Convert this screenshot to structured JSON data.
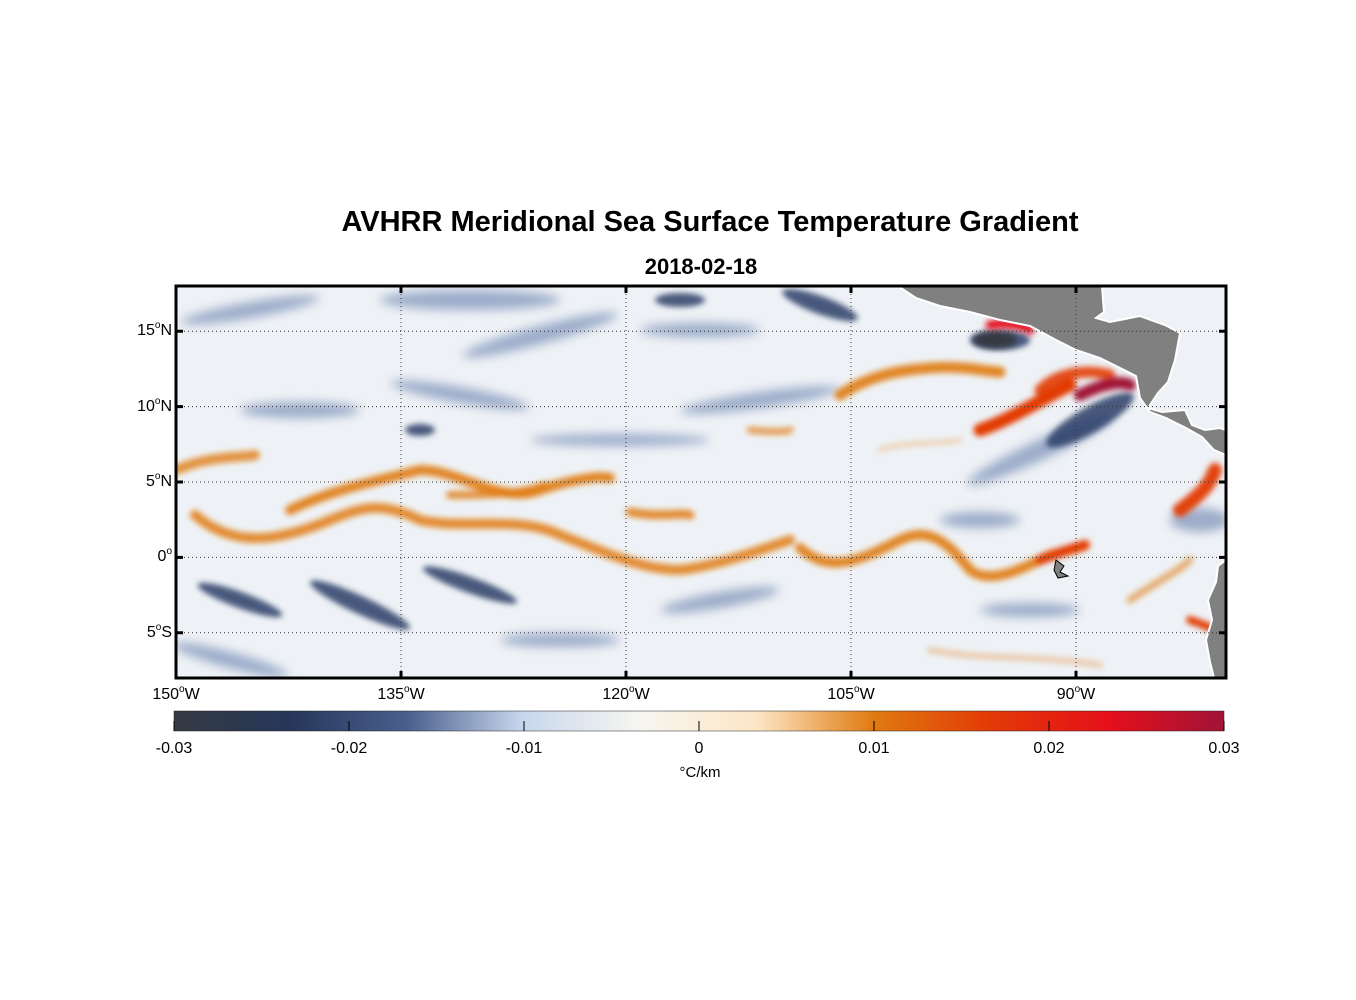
{
  "title": "AVHRR Meridional Sea Surface Temperature Gradient",
  "subtitle": "2018-02-18",
  "map": {
    "lon_range": [
      -150,
      -80
    ],
    "lat_range": [
      -8,
      18
    ],
    "lat_ticks": [
      {
        "value": 15,
        "num": "15",
        "hemi": "N"
      },
      {
        "value": 10,
        "num": "10",
        "hemi": "N"
      },
      {
        "value": 5,
        "num": "5",
        "hemi": "N"
      },
      {
        "value": 0,
        "num": "0",
        "hemi": ""
      },
      {
        "value": -5,
        "num": "5",
        "hemi": "S"
      }
    ],
    "lon_ticks": [
      {
        "value": -150,
        "num": "150",
        "hemi": "W"
      },
      {
        "value": -135,
        "num": "135",
        "hemi": "W"
      },
      {
        "value": -120,
        "num": "120",
        "hemi": "W"
      },
      {
        "value": -105,
        "num": "105",
        "hemi": "W"
      },
      {
        "value": -90,
        "num": "90",
        "hemi": "W"
      }
    ],
    "degree_symbol": "o",
    "land_color": "#808080",
    "grid": "dotted"
  },
  "colorbar": {
    "range": [
      -0.03,
      0.03
    ],
    "tick_labels": [
      "-0.03",
      "-0.02",
      "-0.01",
      "0",
      "0.01",
      "0.02",
      "0.03"
    ],
    "tick_values": [
      -0.03,
      -0.02,
      -0.01,
      0,
      0.01,
      0.02,
      0.03
    ],
    "unit": "°C/km",
    "colormap": [
      "#353a42",
      "#26375a",
      "#4a5f8e",
      "#c9d8ee",
      "#f7f6f0",
      "#fde6c5",
      "#e07a10",
      "#e23a06",
      "#e5101a",
      "#a01338"
    ]
  }
}
